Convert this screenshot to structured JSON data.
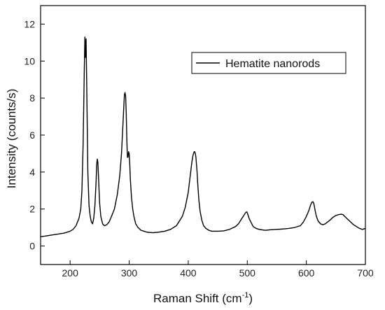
{
  "chart_data": {
    "type": "line",
    "xlabel": "Raman Shift (cm",
    "xlabel_sup": "-1",
    "xlabel_close": ")",
    "ylabel": "Intensity (counts/s)",
    "xlim": [
      150,
      700
    ],
    "ylim": [
      -1,
      13
    ],
    "xticks": [
      200,
      300,
      400,
      500,
      600,
      700
    ],
    "yticks": [
      0,
      2,
      4,
      6,
      8,
      10,
      12
    ],
    "legend": {
      "position": "top-right"
    },
    "series": [
      {
        "name": "Hematite nanorods",
        "color": "#000000",
        "x": [
          150,
          160,
          170,
          180,
          190,
          200,
          205,
          210,
          215,
          218,
          220,
          222,
          224,
          225,
          226,
          227,
          228,
          229,
          230,
          232,
          234,
          236,
          238,
          240,
          242,
          244,
          245,
          246,
          247,
          248,
          249,
          250,
          252,
          255,
          258,
          262,
          266,
          270,
          275,
          280,
          284,
          287,
          289,
          291,
          292,
          293,
          294,
          295,
          296,
          297,
          298,
          299,
          300,
          301,
          302,
          304,
          306,
          308,
          311,
          315,
          320,
          325,
          330,
          340,
          350,
          360,
          370,
          380,
          390,
          395,
          400,
          403,
          406,
          408,
          410,
          411,
          412,
          413,
          414,
          415,
          416,
          418,
          420,
          423,
          426,
          430,
          435,
          440,
          450,
          460,
          470,
          480,
          485,
          490,
          494,
          497,
          499,
          500,
          501,
          503,
          506,
          510,
          515,
          520,
          530,
          540,
          550,
          560,
          570,
          580,
          590,
          595,
          600,
          604,
          607,
          609,
          611,
          612,
          613,
          615,
          617,
          620,
          624,
          628,
          632,
          636,
          640,
          645,
          650,
          655,
          659,
          662,
          665,
          670,
          675,
          680,
          685,
          690,
          695,
          700
        ],
        "y": [
          0.5,
          0.55,
          0.6,
          0.65,
          0.7,
          0.8,
          0.9,
          1.1,
          1.5,
          2.0,
          3.0,
          5.5,
          9.5,
          11.3,
          10.2,
          11.2,
          9.0,
          6.5,
          4.0,
          2.2,
          1.6,
          1.3,
          1.2,
          1.5,
          2.2,
          3.5,
          4.4,
          4.7,
          4.5,
          3.8,
          3.0,
          2.3,
          1.6,
          1.2,
          1.1,
          1.15,
          1.3,
          1.6,
          2.0,
          2.8,
          3.8,
          5.0,
          6.3,
          7.6,
          8.2,
          8.3,
          8.1,
          7.2,
          5.8,
          4.8,
          4.8,
          5.1,
          5.0,
          4.4,
          3.6,
          2.6,
          2.0,
          1.6,
          1.2,
          1.0,
          0.85,
          0.8,
          0.75,
          0.72,
          0.75,
          0.8,
          0.9,
          1.1,
          1.6,
          2.1,
          2.9,
          3.7,
          4.5,
          4.9,
          5.1,
          5.1,
          5.0,
          4.8,
          4.4,
          4.0,
          3.4,
          2.5,
          1.9,
          1.4,
          1.1,
          0.95,
          0.85,
          0.8,
          0.8,
          0.82,
          0.9,
          1.05,
          1.2,
          1.45,
          1.65,
          1.8,
          1.85,
          1.8,
          1.7,
          1.5,
          1.3,
          1.05,
          0.95,
          0.9,
          0.85,
          0.88,
          0.9,
          0.92,
          0.95,
          1.0,
          1.1,
          1.3,
          1.6,
          1.9,
          2.2,
          2.35,
          2.4,
          2.35,
          2.25,
          1.9,
          1.6,
          1.35,
          1.2,
          1.15,
          1.2,
          1.3,
          1.4,
          1.55,
          1.65,
          1.7,
          1.72,
          1.7,
          1.6,
          1.45,
          1.3,
          1.15,
          1.05,
          0.95,
          0.9,
          0.95
        ]
      }
    ]
  }
}
